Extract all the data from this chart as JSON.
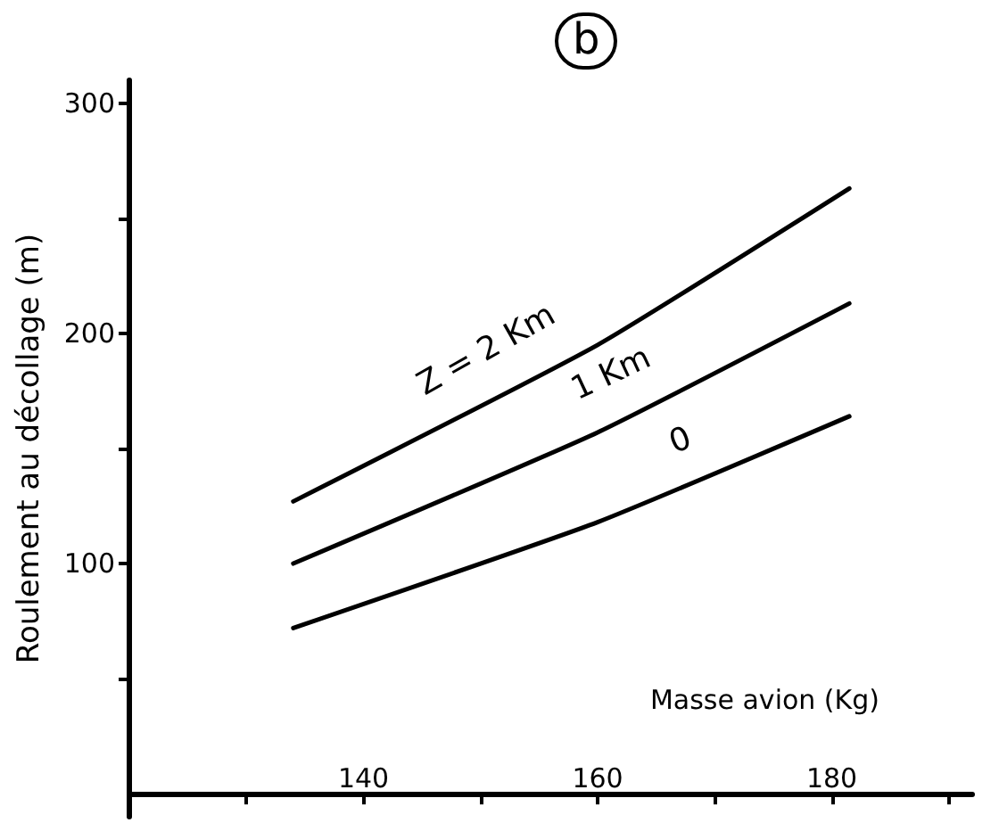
{
  "chart_data": {
    "type": "line",
    "title": "b",
    "xlabel": "Masse avion (Kg)",
    "ylabel": "Roulement au décollage (m)",
    "xlim": [
      120,
      192
    ],
    "ylim": [
      -10,
      310
    ],
    "xticks": [
      {
        "value": 130,
        "label": null
      },
      140,
      {
        "value": 150,
        "label": null
      },
      160,
      {
        "value": 170,
        "label": null
      },
      180,
      {
        "value": 190,
        "label": null
      }
    ],
    "yticks": [
      {
        "value": 50,
        "label": null
      },
      100,
      {
        "value": 150,
        "label": null
      },
      200,
      {
        "value": 250,
        "label": null
      },
      300
    ],
    "grid": false,
    "marker": "none",
    "line_style": "solid",
    "series": [
      {
        "color": "#000000",
        "x": [
          134,
          160,
          181.5
        ],
        "values": [
          127,
          195,
          263
        ]
      },
      {
        "color": "#000000",
        "x": [
          134,
          160,
          181.5
        ],
        "values": [
          100,
          157,
          213
        ]
      },
      {
        "color": "#000000",
        "x": [
          134,
          160,
          181.5
        ],
        "values": [
          72,
          118,
          164
        ]
      }
    ],
    "annotations": [
      "Z = 2 Km",
      "1 Km",
      "0"
    ]
  }
}
